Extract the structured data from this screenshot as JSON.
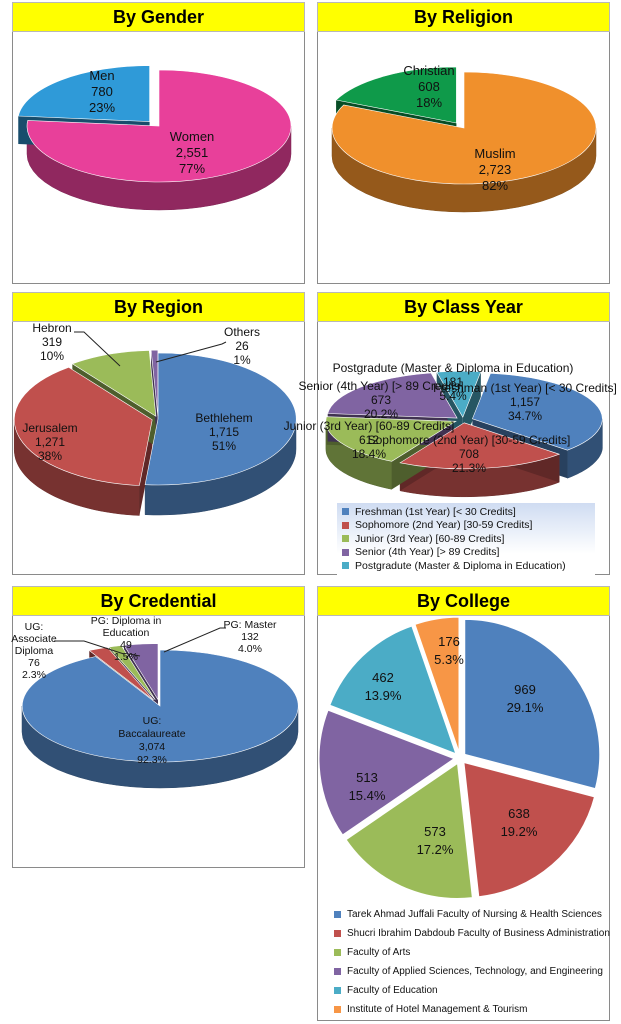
{
  "chart_data": [
    {
      "id": "gender",
      "type": "pie",
      "title": "By Gender",
      "slices": [
        {
          "label": "Women",
          "value": 2551,
          "value_text": "2,551",
          "percent_text": "77%",
          "color": "#e8409a"
        },
        {
          "label": "Men",
          "value": 780,
          "value_text": "780",
          "percent_text": "23%",
          "color": "#2f9ad8"
        }
      ]
    },
    {
      "id": "religion",
      "type": "pie",
      "title": "By Religion",
      "slices": [
        {
          "label": "Muslim",
          "value": 2723,
          "value_text": "2,723",
          "percent_text": "82%",
          "color": "#f0902c"
        },
        {
          "label": "Christian",
          "value": 608,
          "value_text": "608",
          "percent_text": "18%",
          "color": "#0f9a4a"
        }
      ]
    },
    {
      "id": "region",
      "type": "pie",
      "title": "By Region",
      "slices": [
        {
          "label": "Bethlehem",
          "value": 1715,
          "value_text": "1,715",
          "percent_text": "51%",
          "color": "#4f81bd"
        },
        {
          "label": "Jerusalem",
          "value": 1271,
          "value_text": "1,271",
          "percent_text": "38%",
          "color": "#c0504d"
        },
        {
          "label": "Hebron",
          "value": 319,
          "value_text": "319",
          "percent_text": "10%",
          "color": "#9bbb59"
        },
        {
          "label": "Others",
          "value": 26,
          "value_text": "26",
          "percent_text": "1%",
          "color": "#8064a2"
        }
      ]
    },
    {
      "id": "classyear",
      "type": "pie",
      "title": "By Class Year",
      "slices": [
        {
          "label": "Freshman (1st Year) [< 30 Credits]",
          "value": 1157,
          "value_text": "1,157",
          "percent_text": "34.7%",
          "color": "#4f81bd"
        },
        {
          "label": "Sophomore (2nd Year)  [30-59 Credits]",
          "value": 708,
          "value_text": "708",
          "percent_text": "21.3%",
          "color": "#c0504d"
        },
        {
          "label": "Junior (3rd Year)  [60-89 Credits]",
          "value": 612,
          "value_text": "612",
          "percent_text": "18.4%",
          "color": "#9bbb59"
        },
        {
          "label": "Senior (4th Year)  [> 89 Credits]",
          "value": 673,
          "value_text": "673",
          "percent_text": "20.2%",
          "color": "#8064a2"
        },
        {
          "label": "Postgradute (Master & Diploma in Education)",
          "value": 181,
          "value_text": "181",
          "percent_text": "5.4%",
          "color": "#4bacc6"
        }
      ]
    },
    {
      "id": "credential",
      "type": "pie",
      "title": "By Credential",
      "slices": [
        {
          "label": "UG: Baccalaureate",
          "value": 3074,
          "value_text": "3,074",
          "percent_text": "92.3%",
          "color": "#4f81bd"
        },
        {
          "label": "UG: Associate Diploma",
          "value": 76,
          "value_text": "76",
          "percent_text": "2.3%",
          "color": "#c0504d"
        },
        {
          "label": "PG: Diploma in Education",
          "value": 49,
          "value_text": "49",
          "percent_text": "1.5%",
          "color": "#9bbb59"
        },
        {
          "label": "PG: Master",
          "value": 132,
          "value_text": "132",
          "percent_text": "4.0%",
          "color": "#8064a2"
        }
      ]
    },
    {
      "id": "college",
      "type": "pie",
      "title": "By College",
      "slices": [
        {
          "label": "Tarek Ahmad Juffali Faculty of Nursing & Health Sciences",
          "value": 969,
          "value_text": "969",
          "percent_text": "29.1%",
          "color": "#4f81bd"
        },
        {
          "label": "Shucri Ibrahim Dabdoub Faculty of Business Administration",
          "value": 638,
          "value_text": "638",
          "percent_text": "19.2%",
          "color": "#c0504d"
        },
        {
          "label": "Faculty of Arts",
          "value": 573,
          "value_text": "573",
          "percent_text": "17.2%",
          "color": "#9bbb59"
        },
        {
          "label": "Faculty of Applied Sciences, Technology, and Engineering",
          "value": 513,
          "value_text": "513",
          "percent_text": "15.4%",
          "color": "#8064a2"
        },
        {
          "label": "Faculty of Education",
          "value": 462,
          "value_text": "462",
          "percent_text": "13.9%",
          "color": "#4bacc6"
        },
        {
          "label": "Institute of Hotel Management & Tourism",
          "value": 176,
          "value_text": "176",
          "percent_text": "5.3%",
          "color": "#f79646"
        }
      ]
    }
  ]
}
